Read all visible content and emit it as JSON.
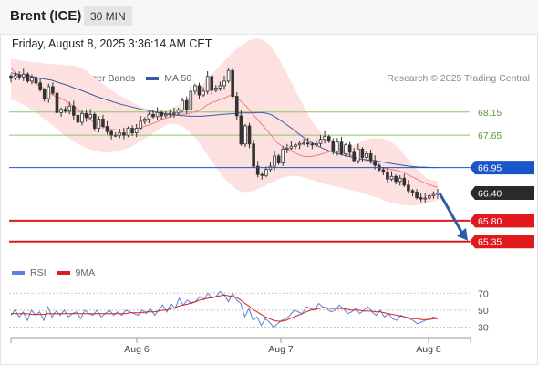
{
  "header": {
    "instrument": "Brent (ICE)",
    "timeframe": "30 MIN",
    "datetime": "Friday, August 8, 2025 3:36:14 AM CET"
  },
  "legend": {
    "ma20_label": "MA 20 + Bollinger Bands",
    "ma50_label": "MA 50",
    "rsi_label": "RSI",
    "rsi_ma_label": "9MA"
  },
  "credit": "Research © 2025 Trading Central",
  "colors": {
    "ma20": "#f08080",
    "ma50": "#3a5aa6",
    "bands_fill": "#fde0e0",
    "pivot": "#1a56c8",
    "resistance": "#8cc56a",
    "support": "#e0191d",
    "last_price_tag": "#2a2a2a",
    "arrow": "#2b5ea8",
    "rsi": "#5b82d8",
    "rsi_ma": "#d62020",
    "candle": "#333333"
  },
  "chart_data": {
    "type": "candlestick",
    "y_range": [
      64.95,
      68.6
    ],
    "levels": [
      {
        "value": 68.15,
        "label": "68.15",
        "kind": "resistance"
      },
      {
        "value": 67.65,
        "label": "67.65",
        "kind": "resistance"
      },
      {
        "value": 66.95,
        "label": "66.95",
        "kind": "pivot"
      },
      {
        "value": 66.4,
        "label": "66.40",
        "kind": "last"
      },
      {
        "value": 65.8,
        "label": "65.80",
        "kind": "support"
      },
      {
        "value": 65.35,
        "label": "65.35",
        "kind": "support"
      }
    ],
    "x_ticks": [
      "Aug 6",
      "Aug 7",
      "Aug 8"
    ],
    "close": [
      68.88,
      68.94,
      68.91,
      68.97,
      68.82,
      68.9,
      68.78,
      68.63,
      68.44,
      68.7,
      68.56,
      68.14,
      68.21,
      68.17,
      68.28,
      68.08,
      67.93,
      68.12,
      68.03,
      68.1,
      67.8,
      68.0,
      67.84,
      67.73,
      67.65,
      67.65,
      67.7,
      67.65,
      67.8,
      67.7,
      67.8,
      67.95,
      68.0,
      68.1,
      68.05,
      68.14,
      68.07,
      68.1,
      68.12,
      68.13,
      68.2,
      68.4,
      68.2,
      68.6,
      68.72,
      68.52,
      68.6,
      68.92,
      68.62,
      68.67,
      68.72,
      68.82,
      69.05,
      68.49,
      68.07,
      67.46,
      67.85,
      67.46,
      66.98,
      66.8,
      66.78,
      66.91,
      66.98,
      67.2,
      67.05,
      67.35,
      67.37,
      67.41,
      67.44,
      67.47,
      67.48,
      67.46,
      67.44,
      67.47,
      67.56,
      67.62,
      67.52,
      67.3,
      67.5,
      67.25,
      67.44,
      67.28,
      67.1,
      67.35,
      67.17,
      67.25,
      67.1,
      67.0,
      66.9,
      66.85,
      66.7,
      66.76,
      66.65,
      66.72,
      66.57,
      66.45,
      66.42,
      66.3,
      66.27,
      66.29,
      66.34,
      66.37,
      66.4
    ],
    "ma20": [
      69.1,
      69.0,
      68.95,
      68.9,
      68.85,
      68.8,
      68.75,
      68.7,
      68.62,
      68.55,
      68.5,
      68.47,
      68.42,
      68.37,
      68.3,
      68.23,
      68.15,
      68.08,
      68.0,
      67.93,
      67.88,
      67.84,
      67.81,
      67.78,
      67.77,
      67.76,
      67.76,
      67.76,
      67.78,
      67.8,
      67.82,
      67.85,
      67.88,
      67.92,
      67.96,
      68.0,
      68.03,
      68.07,
      68.09,
      68.1,
      68.1,
      68.12,
      68.15,
      68.18,
      68.23,
      68.3,
      68.35,
      68.38,
      68.42,
      68.45,
      68.5,
      68.52,
      68.46,
      68.37,
      68.28,
      68.17,
      68.06,
      67.95,
      67.84,
      67.73,
      67.62,
      67.5,
      67.43,
      67.38,
      67.33,
      67.28,
      67.23,
      67.2,
      67.19,
      67.19,
      67.21,
      67.23,
      67.26,
      67.29,
      67.31,
      67.31,
      67.29,
      67.26,
      67.22,
      67.18,
      67.15,
      67.12,
      67.09,
      67.04,
      67.0,
      66.95,
      66.93,
      66.92,
      66.9,
      66.88,
      66.85,
      66.8,
      66.76,
      66.71,
      66.66,
      66.62,
      66.58,
      66.55,
      66.52
    ],
    "ma50": [
      69.0,
      68.97,
      68.95,
      68.93,
      68.91,
      68.88,
      68.86,
      68.84,
      68.8,
      68.76,
      68.72,
      68.67,
      68.63,
      68.58,
      68.53,
      68.48,
      68.44,
      68.4,
      68.36,
      68.32,
      68.29,
      68.26,
      68.23,
      68.2,
      68.18,
      68.15,
      68.13,
      68.11,
      68.09,
      68.08,
      68.07,
      68.06,
      68.06,
      68.06,
      68.07,
      68.08,
      68.09,
      68.1,
      68.11,
      68.12,
      68.13,
      68.13,
      68.13,
      68.14,
      68.13,
      68.1,
      68.03,
      67.95,
      67.86,
      67.77,
      67.67,
      67.58,
      67.5,
      67.43,
      67.37,
      67.32,
      67.28,
      67.24,
      67.21,
      67.18,
      67.15,
      67.13,
      67.11,
      67.1,
      67.08,
      67.06,
      67.04,
      67.02,
      67.0,
      66.98,
      66.97,
      66.96,
      66.96,
      66.95,
      66.95
    ],
    "bb_upper": [
      69.3,
      69.28,
      69.26,
      69.24,
      69.23,
      69.22,
      69.2,
      69.19,
      69.18,
      69.17,
      69.16,
      69.15,
      69.12,
      69.05,
      68.95,
      68.85,
      68.75,
      68.66,
      68.58,
      68.5,
      68.43,
      68.36,
      68.3,
      68.25,
      68.21,
      68.19,
      68.19,
      68.2,
      68.24,
      68.3,
      68.38,
      68.48,
      68.6,
      68.72,
      68.85,
      68.99,
      69.12,
      69.26,
      69.38,
      69.5,
      69.6,
      69.68,
      69.73,
      69.74,
      69.69,
      69.58,
      69.4,
      69.18,
      68.94,
      68.7,
      68.46,
      68.22,
      68.0,
      67.82,
      67.68,
      67.56,
      67.47,
      67.42,
      67.4,
      67.42,
      67.46,
      67.52,
      67.57,
      67.59,
      67.59,
      67.56,
      67.5,
      67.4,
      67.26,
      67.11,
      66.96,
      66.83,
      66.73,
      66.68,
      66.66
    ],
    "bb_lower": [
      68.42,
      68.38,
      68.32,
      68.25,
      68.17,
      68.08,
      67.98,
      67.88,
      67.78,
      67.68,
      67.59,
      67.51,
      67.44,
      67.38,
      67.33,
      67.3,
      67.28,
      67.28,
      67.29,
      67.32,
      67.36,
      67.41,
      67.48,
      67.56,
      67.64,
      67.72,
      67.8,
      67.87,
      67.9,
      67.88,
      67.82,
      67.72,
      67.58,
      67.42,
      67.24,
      67.05,
      66.88,
      66.72,
      66.59,
      66.49,
      66.43,
      66.42,
      66.44,
      66.49,
      66.55,
      66.62,
      66.68,
      66.73,
      66.76,
      66.77,
      66.76,
      66.73,
      66.69,
      66.65,
      66.61,
      66.58,
      66.55,
      66.52,
      66.49,
      66.46,
      66.43,
      66.4,
      66.36,
      66.32,
      66.28,
      66.23,
      66.19,
      66.16,
      66.14,
      66.13,
      66.13,
      66.15,
      66.18,
      66.21,
      66.24
    ],
    "rsi_panel": {
      "y_range": [
        22,
        80
      ],
      "ticks": [
        70,
        50,
        30
      ],
      "rsi": [
        44,
        50,
        42,
        48,
        38,
        50,
        44,
        48,
        38,
        54,
        42,
        49,
        44,
        50,
        42,
        46,
        48,
        40,
        50,
        46,
        44,
        50,
        42,
        46,
        50,
        44,
        48,
        44,
        50,
        48,
        46,
        44,
        50,
        46,
        52,
        44,
        50,
        56,
        48,
        58,
        52,
        64,
        56,
        62,
        58,
        60,
        66,
        62,
        70,
        64,
        66,
        72,
        68,
        60,
        70,
        62,
        58,
        42,
        52,
        38,
        42,
        32,
        40,
        36,
        30,
        34,
        38,
        40,
        44,
        50,
        48,
        46,
        54,
        52,
        50,
        58,
        54,
        52,
        48,
        50,
        56,
        52,
        46,
        48,
        52,
        46,
        50,
        54,
        48,
        44,
        50,
        42,
        46,
        40,
        38,
        44,
        42,
        40,
        38,
        34,
        36,
        38,
        40,
        42,
        40
      ],
      "rsi_ma": [
        46,
        46,
        46,
        46,
        46,
        45,
        45,
        45,
        45,
        46,
        46,
        46,
        46,
        46,
        46,
        46,
        46,
        46,
        46,
        46,
        46,
        46,
        46,
        46,
        46,
        46,
        46,
        46,
        46,
        47,
        47,
        47,
        47,
        48,
        48,
        48,
        49,
        50,
        50,
        52,
        53,
        55,
        56,
        57,
        59,
        60,
        62,
        63,
        64,
        65,
        66,
        67,
        68,
        67,
        66,
        65,
        62,
        58,
        55,
        51,
        48,
        45,
        42,
        40,
        38,
        37,
        37,
        38,
        40,
        42,
        44,
        46,
        48,
        50,
        51,
        52,
        53,
        53,
        52,
        52,
        52,
        52,
        51,
        50,
        50,
        50,
        49,
        49,
        49,
        48,
        48,
        47,
        46,
        45,
        44,
        43,
        42,
        41,
        40,
        40,
        39,
        39,
        39,
        40,
        40
      ]
    }
  }
}
